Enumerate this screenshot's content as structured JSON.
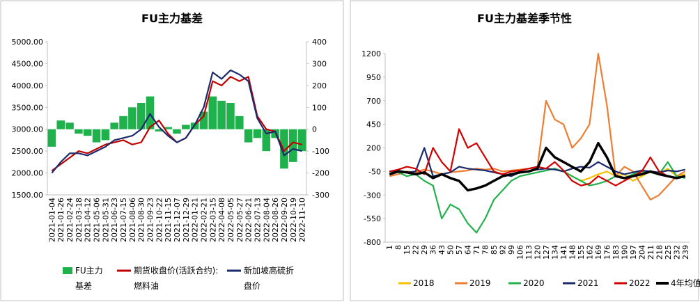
{
  "chart_data": [
    {
      "type": "bar-line",
      "title": "FU主力基差",
      "categories": [
        "2021-01-04",
        "2021-01-26",
        "2021-02-24",
        "2021-03-18",
        "2021-04-12",
        "2021-05-06",
        "2021-05-31",
        "2021-06-23",
        "2021-07-15",
        "2021-08-06",
        "2021-08-30",
        "2021-09-23",
        "2021-10-22",
        "2021-11-15",
        "2021-12-07",
        "2021-12-29",
        "2022-01-21",
        "2022-02-21",
        "2022-03-15",
        "2022-04-08",
        "2022-05-05",
        "2022-05-27",
        "2022-06-21",
        "2022-07-13",
        "2022-08-04",
        "2022-08-26",
        "2022-09-20",
        "2022-10-19",
        "2022-11-10"
      ],
      "series": [
        {
          "name": "FU主力基差",
          "color": "#1fb14c",
          "axis": "y2",
          "kind": "bar",
          "values": [
            -80,
            40,
            30,
            -20,
            -30,
            -60,
            -50,
            30,
            60,
            100,
            120,
            150,
            -10,
            10,
            -20,
            20,
            30,
            80,
            150,
            130,
            120,
            60,
            -60,
            -40,
            -100,
            -40,
            -180,
            -150,
            -100
          ]
        },
        {
          "name": "期货收盘价(活跃合约):燃料油",
          "color": "#c00000",
          "kind": "line",
          "values": [
            2050,
            2200,
            2350,
            2500,
            2450,
            2550,
            2650,
            2700,
            2750,
            2650,
            2700,
            3050,
            3200,
            2900,
            2700,
            2800,
            3100,
            3300,
            4100,
            4000,
            4200,
            4100,
            4200,
            3300,
            3000,
            2950,
            2500,
            2700,
            2650
          ]
        },
        {
          "name": "新加坡高硫折盘价",
          "color": "#1a2a6c",
          "kind": "line",
          "values": [
            2000,
            2250,
            2450,
            2450,
            2400,
            2500,
            2600,
            2750,
            2800,
            2850,
            3000,
            3350,
            3050,
            2850,
            2700,
            2800,
            3100,
            3500,
            4300,
            4150,
            4350,
            4250,
            4100,
            3250,
            2900,
            2950,
            2400,
            2550,
            2500
          ]
        }
      ],
      "ylim": [
        1500,
        5000
      ],
      "yticks": [
        {
          "value": 1500,
          "label": "1500.00"
        },
        {
          "value": 2000,
          "label": "2000.00"
        },
        {
          "value": 2500,
          "label": "2500.00"
        },
        {
          "value": 3000,
          "label": "3000.00"
        },
        {
          "value": 3500,
          "label": "3500.00"
        },
        {
          "value": 4000,
          "label": "4000.00"
        },
        {
          "value": 4500,
          "label": "4500.00"
        },
        {
          "value": 5000,
          "label": "5000.00"
        }
      ],
      "y2lim": [
        -300,
        400
      ],
      "y2ticks": [
        -300,
        -200,
        -100,
        0,
        100,
        200,
        300,
        400
      ]
    },
    {
      "type": "line",
      "title": "FU主力基差季节性",
      "categories": [
        "1",
        "8",
        "15",
        "22",
        "29",
        "36",
        "43",
        "50",
        "57",
        "64",
        "71",
        "78",
        "85",
        "92",
        "99",
        "106",
        "113",
        "120",
        "127",
        "134",
        "141",
        "148",
        "155",
        "162",
        "169",
        "176",
        "183",
        "190",
        "197",
        "204",
        "211",
        "218",
        "225",
        "232",
        "239"
      ],
      "series": [
        {
          "name": "2018",
          "color": "#f5c000",
          "values": [
            null,
            null,
            null,
            null,
            null,
            null,
            null,
            null,
            null,
            null,
            null,
            null,
            null,
            null,
            null,
            null,
            null,
            null,
            null,
            null,
            -50,
            -100,
            -150,
            -120,
            -80,
            -50,
            -100,
            -80,
            -150,
            -100,
            -50,
            -80,
            -20,
            -100,
            -80
          ]
        },
        {
          "name": "2019",
          "color": "#ed7d31",
          "values": [
            -100,
            -80,
            -50,
            -60,
            -30,
            -50,
            -80,
            -60,
            -50,
            -40,
            -20,
            -30,
            -20,
            -50,
            -40,
            -30,
            -20,
            -10,
            700,
            500,
            450,
            200,
            300,
            450,
            1200,
            650,
            -100,
            0,
            -50,
            -200,
            -350,
            -300,
            -200,
            -100,
            -50
          ]
        },
        {
          "name": "2020",
          "color": "#22b14c",
          "values": [
            -50,
            -60,
            -100,
            -80,
            -150,
            -200,
            -550,
            -400,
            -450,
            -600,
            -700,
            -550,
            -350,
            -250,
            -150,
            -100,
            -80,
            -60,
            -40,
            -20,
            -50,
            -100,
            -150,
            -200,
            -180,
            -150,
            -100,
            -120,
            -80,
            -50,
            -60,
            -80,
            50,
            -100,
            -120
          ]
        },
        {
          "name": "2021",
          "color": "#1a2a6c",
          "values": [
            -50,
            -40,
            -60,
            -50,
            200,
            -100,
            -80,
            -60,
            0,
            -20,
            -30,
            -40,
            -60,
            -80,
            -100,
            -60,
            -50,
            -30,
            -20,
            -30,
            -50,
            -20,
            0,
            -10,
            50,
            0,
            -50,
            -80,
            -60,
            -40,
            -50,
            -60,
            -40,
            -50,
            -30
          ]
        },
        {
          "name": "2022",
          "color": "#d00000",
          "values": [
            -50,
            -30,
            0,
            -20,
            -80,
            200,
            50,
            -50,
            400,
            200,
            250,
            100,
            -50,
            -80,
            -50,
            -40,
            -20,
            0,
            -20,
            50,
            -40,
            -150,
            -200,
            -180,
            -100,
            -150,
            -200,
            -150,
            -100,
            -50,
            100,
            -50,
            -100,
            -120,
            -100
          ]
        },
        {
          "name": "4年均值",
          "color": "#000000",
          "values": [
            -80,
            -50,
            -60,
            -80,
            -60,
            -120,
            -80,
            -120,
            -150,
            -250,
            -230,
            -200,
            -150,
            -100,
            -80,
            -60,
            -50,
            -20,
            200,
            100,
            50,
            0,
            -50,
            50,
            250,
            100,
            -100,
            -120,
            -100,
            -80,
            -50,
            -80,
            -100,
            -120,
            -100
          ]
        }
      ],
      "ylim": [
        -800,
        1200
      ],
      "yticks": [
        -800,
        -550,
        -300,
        -50,
        200,
        450,
        700,
        950,
        1200
      ]
    }
  ]
}
